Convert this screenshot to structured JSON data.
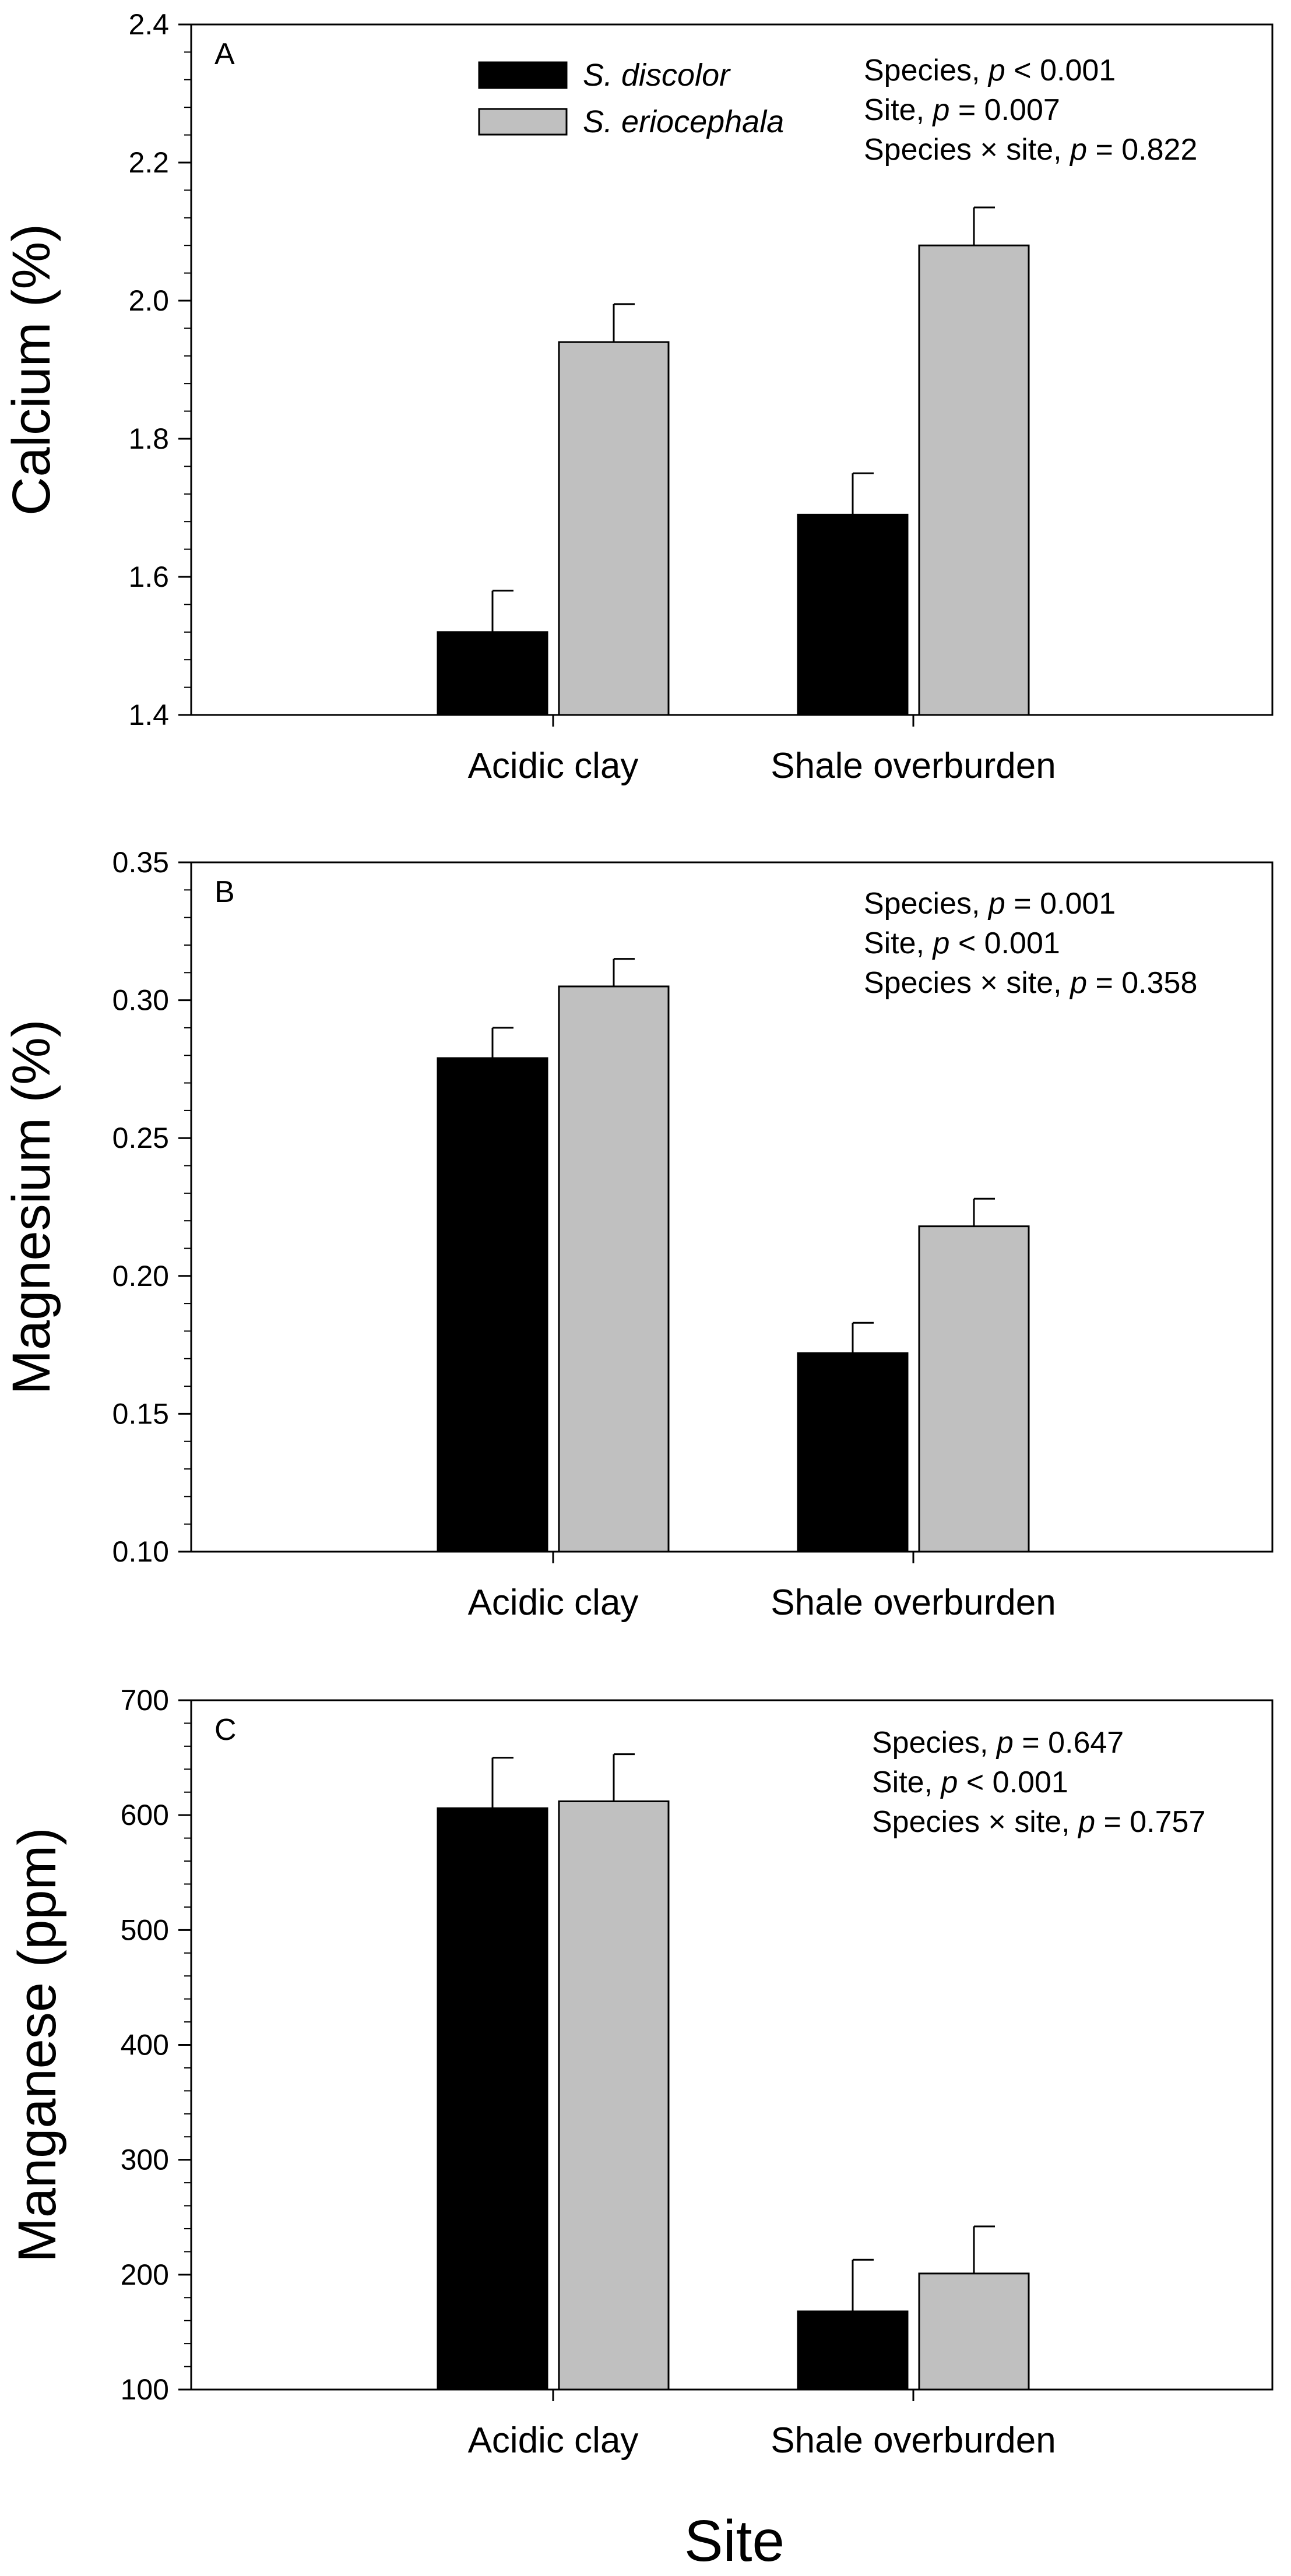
{
  "chart_data": [
    {
      "type": "bar",
      "panel_label": "A",
      "categories": [
        "Acidic clay",
        "Shale overburden"
      ],
      "series": [
        {
          "name": "S. discolor",
          "color": "#000000",
          "values": [
            1.52,
            1.69
          ],
          "errors": [
            0.06,
            0.06
          ]
        },
        {
          "name": "S. eriocephala",
          "color": "#c0c0c0",
          "values": [
            1.94,
            2.08
          ],
          "errors": [
            0.055,
            0.055
          ]
        }
      ],
      "ylabel": "Calcium (%)",
      "ylim": [
        1.4,
        2.4
      ],
      "yticks": [
        1.4,
        1.6,
        1.8,
        2.0,
        2.2,
        2.4
      ],
      "ytick_labels": [
        "1.4",
        "1.6",
        "1.8",
        "2.0",
        "2.2",
        "2.4"
      ],
      "legend": true,
      "stats": [
        {
          "prefix": "Species, ",
          "p": "p",
          "suffix": " < 0.001"
        },
        {
          "prefix": "Site, ",
          "p": "p",
          "suffix": " = 0.007"
        },
        {
          "prefix": "Species × site, ",
          "p": "p",
          "suffix": " = 0.822"
        }
      ]
    },
    {
      "type": "bar",
      "panel_label": "B",
      "categories": [
        "Acidic clay",
        "Shale overburden"
      ],
      "series": [
        {
          "name": "S. discolor",
          "color": "#000000",
          "values": [
            0.279,
            0.172
          ],
          "errors": [
            0.011,
            0.011
          ]
        },
        {
          "name": "S. eriocephala",
          "color": "#c0c0c0",
          "values": [
            0.305,
            0.218
          ],
          "errors": [
            0.01,
            0.01
          ]
        }
      ],
      "ylabel": "Magnesium (%)",
      "ylim": [
        0.1,
        0.35
      ],
      "yticks": [
        0.1,
        0.15,
        0.2,
        0.25,
        0.3,
        0.35
      ],
      "ytick_labels": [
        "0.10",
        "0.15",
        "0.20",
        "0.25",
        "0.30",
        "0.35"
      ],
      "legend": false,
      "stats": [
        {
          "prefix": "Species, ",
          "p": "p",
          "suffix": " = 0.001"
        },
        {
          "prefix": "Site, ",
          "p": "p",
          "suffix": " < 0.001"
        },
        {
          "prefix": "Species × site, ",
          "p": "p",
          "suffix": " = 0.358"
        }
      ]
    },
    {
      "type": "bar",
      "panel_label": "C",
      "categories": [
        "Acidic clay",
        "Shale overburden"
      ],
      "series": [
        {
          "name": "S. discolor",
          "color": "#000000",
          "values": [
            606,
            168
          ],
          "errors": [
            44,
            45
          ]
        },
        {
          "name": "S. eriocephala",
          "color": "#c0c0c0",
          "values": [
            612,
            201
          ],
          "errors": [
            41,
            41
          ]
        }
      ],
      "ylabel": "Manganese (ppm)",
      "ylim": [
        100,
        700
      ],
      "yticks": [
        100,
        200,
        300,
        400,
        500,
        600,
        700
      ],
      "ytick_labels": [
        "100",
        "200",
        "300",
        "400",
        "500",
        "600",
        "700"
      ],
      "legend": false,
      "stats": [
        {
          "prefix": "Species, ",
          "p": "p",
          "suffix": " = 0.647"
        },
        {
          "prefix": "Site, ",
          "p": "p",
          "suffix": " < 0.001"
        },
        {
          "prefix": "Species × site, ",
          "p": "p",
          "suffix": " = 0.757"
        }
      ]
    }
  ],
  "xlabel": "Site"
}
